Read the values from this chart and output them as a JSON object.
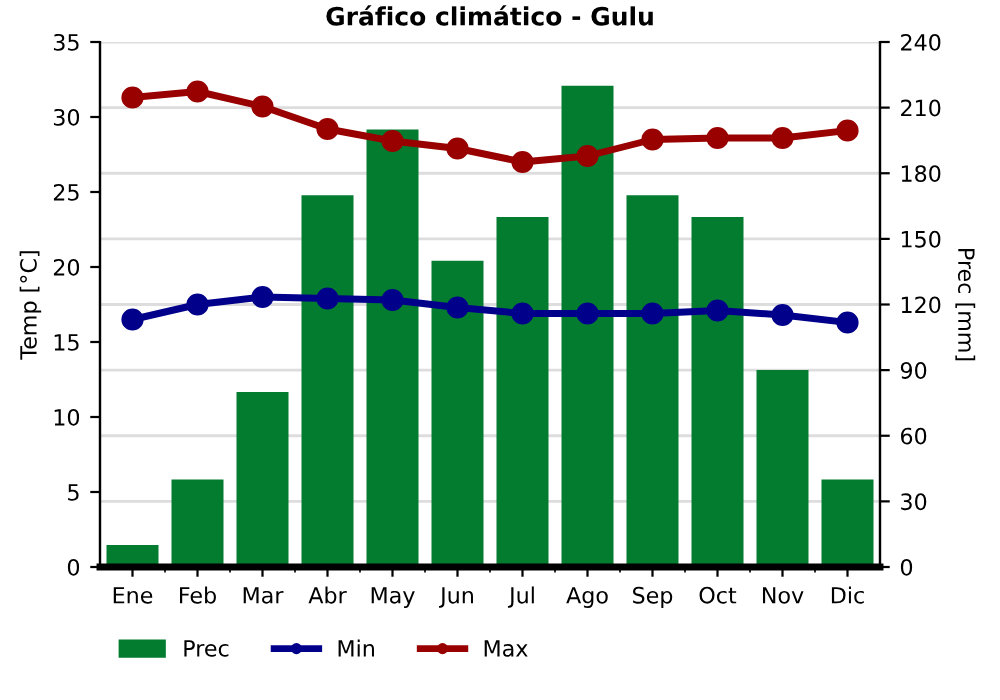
{
  "chart_data": {
    "type": "bar",
    "title": "Gráfico climático - Gulu",
    "ylabel": "Temp [°C]",
    "y2label": "Prec [mm]",
    "categories": [
      "Ene",
      "Feb",
      "Mar",
      "Abr",
      "May",
      "Jun",
      "Jul",
      "Ago",
      "Sep",
      "Oct",
      "Nov",
      "Dic"
    ],
    "series": [
      {
        "name": "Prec",
        "axis": "y2",
        "color": "#037c30",
        "values": [
          10,
          40,
          80,
          170,
          200,
          140,
          160,
          220,
          170,
          160,
          90,
          40
        ]
      },
      {
        "name": "Min",
        "type": "line",
        "color": "#00008b",
        "values": [
          16.5,
          17.5,
          18,
          17.9,
          17.8,
          17.3,
          16.9,
          16.9,
          16.9,
          17.1,
          16.8,
          16.3
        ]
      },
      {
        "name": "Max",
        "type": "line",
        "color": "#990000",
        "values": [
          31.3,
          31.7,
          30.7,
          29.2,
          28.4,
          27.9,
          27,
          27.4,
          28.5,
          28.6,
          28.6,
          29.1
        ]
      }
    ],
    "ylim": [
      0,
      35
    ],
    "yticks": [
      0,
      5,
      10,
      15,
      20,
      25,
      30,
      35
    ],
    "y2lim": [
      0,
      240
    ],
    "y2ticks": [
      0,
      30,
      60,
      90,
      120,
      150,
      180,
      210,
      240
    ],
    "grid": true,
    "legend": "bottom",
    "marker": "circle",
    "line_style": "solid"
  }
}
